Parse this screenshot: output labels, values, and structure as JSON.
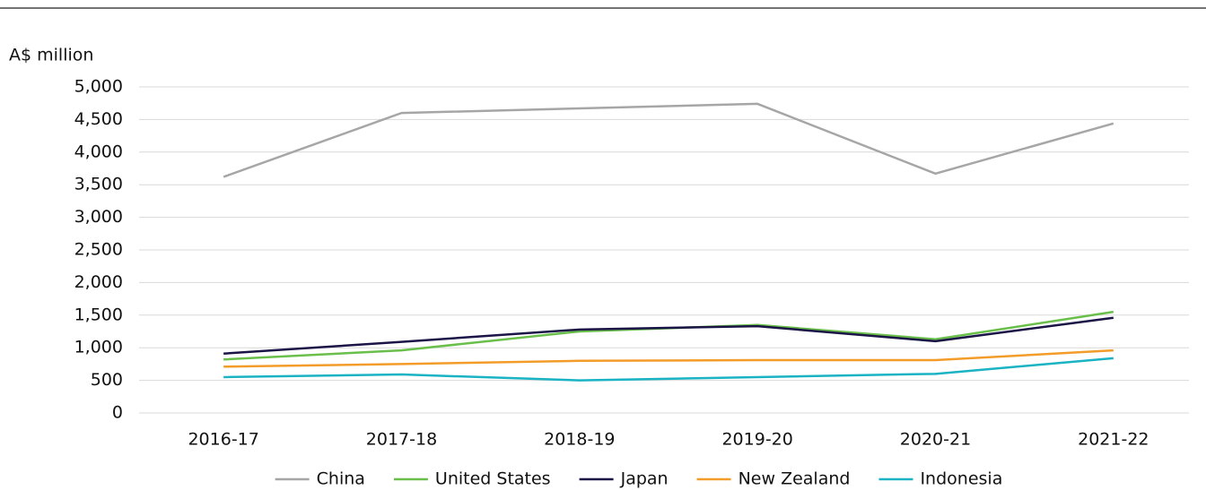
{
  "chart_data": {
    "type": "line",
    "y_label": "A$ million",
    "categories": [
      "2016-17",
      "2017-18",
      "2018-19",
      "2019-20",
      "2020-21",
      "2021-22"
    ],
    "series": [
      {
        "name": "China",
        "color": "#a6a6a6",
        "values": [
          3620,
          4600,
          4670,
          4740,
          3670,
          4440
        ]
      },
      {
        "name": "United States",
        "color": "#6abf4b",
        "values": [
          820,
          960,
          1250,
          1350,
          1130,
          1550
        ]
      },
      {
        "name": "Japan",
        "color": "#1b1446",
        "values": [
          910,
          1090,
          1280,
          1330,
          1100,
          1460
        ]
      },
      {
        "name": "New Zealand",
        "color": "#f39c2a",
        "values": [
          710,
          750,
          800,
          810,
          810,
          960
        ]
      },
      {
        "name": "Indonesia",
        "color": "#1ab3c4",
        "values": [
          550,
          590,
          500,
          550,
          600,
          840
        ]
      }
    ],
    "ylim": [
      0,
      5000
    ],
    "yticks": [
      0,
      500,
      {
        "value": 1000,
        "label": "1,000"
      },
      {
        "value": 1500,
        "label": "1,500"
      },
      {
        "value": 2000,
        "label": "2,000"
      },
      {
        "value": 2500,
        "label": "2,500"
      },
      {
        "value": 3000,
        "label": "3,000"
      },
      {
        "value": 3500,
        "label": "3,500"
      },
      {
        "value": 4000,
        "label": "4,000"
      },
      {
        "value": 4500,
        "label": "4,500"
      },
      {
        "value": 5000,
        "label": "5,000"
      }
    ],
    "grid": true,
    "legend": "bottom"
  }
}
